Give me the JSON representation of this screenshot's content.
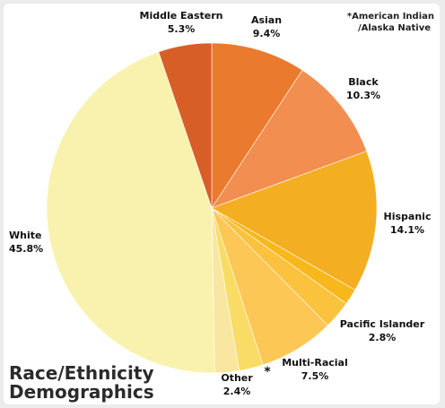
{
  "chart_data": {
    "type": "pie",
    "title_lines": [
      "Race/Ethnicity",
      "Demographics"
    ],
    "footnote_lines": [
      "*American Indian",
      "/Alaska Native"
    ],
    "footnote_marker": "*",
    "slices": [
      {
        "name": "Asian",
        "value": 9.4,
        "value_label": "9.4%",
        "color": "#ea7a2d"
      },
      {
        "name": "Black",
        "value": 10.3,
        "value_label": "10.3%",
        "color": "#f28e50"
      },
      {
        "name": "Hispanic",
        "value": 14.1,
        "value_label": "14.1%",
        "color": "#f4ae22"
      },
      {
        "name": "",
        "value": 1.6,
        "value_label": "",
        "color": "#f8b81c"
      },
      {
        "name": "Pacific Islander",
        "value": 2.8,
        "value_label": "2.8%",
        "color": "#fbc23e"
      },
      {
        "name": "Multi-Racial",
        "value": 7.5,
        "value_label": "7.5%",
        "color": "#fdc756"
      },
      {
        "name": "*",
        "value": 2.4,
        "value_label": "",
        "color": "#f9dc65"
      },
      {
        "name": "Other",
        "value": 2.4,
        "value_label": "2.4%",
        "color": "#f9e6a1"
      },
      {
        "name": "White",
        "value": 45.8,
        "value_label": "45.8%",
        "color": "#f8f2ae"
      },
      {
        "name": "Middle Eastern",
        "value": 5.3,
        "value_label": "5.3%",
        "color": "#d85e28"
      }
    ]
  }
}
